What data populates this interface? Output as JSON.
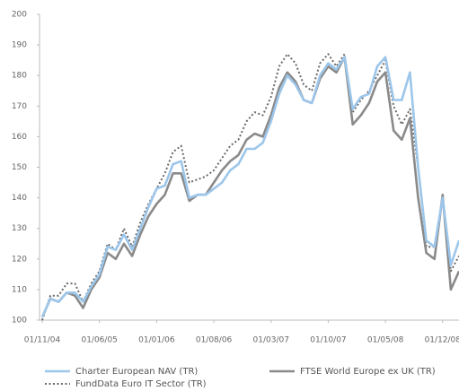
{
  "chart_data": {
    "type": "line",
    "categories": [
      "01/11/04",
      null,
      null,
      null,
      null,
      null,
      null,
      "01/06/05",
      null,
      null,
      null,
      null,
      null,
      null,
      "01/01/06",
      null,
      null,
      null,
      null,
      null,
      null,
      "01/08/06",
      null,
      null,
      null,
      null,
      null,
      null,
      "01/03/07",
      null,
      null,
      null,
      null,
      null,
      null,
      "01/10/07",
      null,
      null,
      null,
      null,
      null,
      null,
      "01/05/08",
      null,
      null,
      null,
      null,
      null,
      null,
      "01/12/08",
      null,
      null
    ],
    "series": [
      {
        "name": "Charter European NAV (TR)",
        "color": "#9cc6ea",
        "style": "solid",
        "values": [
          101,
          107,
          106,
          109,
          109,
          106,
          111,
          115,
          124,
          123,
          128,
          123,
          130,
          137,
          143,
          144,
          151,
          152,
          140,
          141,
          141,
          143,
          145,
          149,
          151,
          156,
          156,
          158,
          165,
          174,
          180,
          177,
          172,
          171,
          180,
          184,
          182,
          186,
          169,
          173,
          174,
          183,
          186,
          172,
          172,
          181,
          150,
          126,
          124,
          140,
          118,
          126
        ]
      },
      {
        "name": "FTSE World Europe ex UK (TR)",
        "color": "#8a8a8a",
        "style": "solid",
        "values": [
          101,
          107,
          106,
          109,
          108,
          104,
          110,
          114,
          122,
          120,
          125,
          121,
          128,
          134,
          138,
          141,
          148,
          148,
          139,
          141,
          141,
          145,
          149,
          152,
          154,
          159,
          161,
          160,
          167,
          176,
          181,
          178,
          172,
          171,
          179,
          183,
          181,
          186,
          164,
          167,
          171,
          178,
          181,
          162,
          159,
          166,
          140,
          122,
          120,
          141,
          110,
          116
        ]
      },
      {
        "name": "FundData Euro IT Sector (TR)",
        "color": "#6a6a6a",
        "style": "dotted",
        "values": [
          100,
          108,
          108,
          112,
          112,
          106,
          112,
          116,
          125,
          123,
          130,
          124,
          132,
          138,
          143,
          148,
          155,
          157,
          145,
          146,
          147,
          149,
          153,
          157,
          159,
          165,
          168,
          167,
          173,
          183,
          187,
          184,
          177,
          175,
          184,
          187,
          183,
          187,
          168,
          172,
          175,
          180,
          185,
          170,
          164,
          169,
          150,
          124,
          124,
          140,
          116,
          121
        ]
      }
    ],
    "ylim": [
      100,
      200
    ],
    "yticks": [
      100,
      110,
      120,
      130,
      140,
      150,
      160,
      170,
      180,
      190,
      200
    ]
  }
}
